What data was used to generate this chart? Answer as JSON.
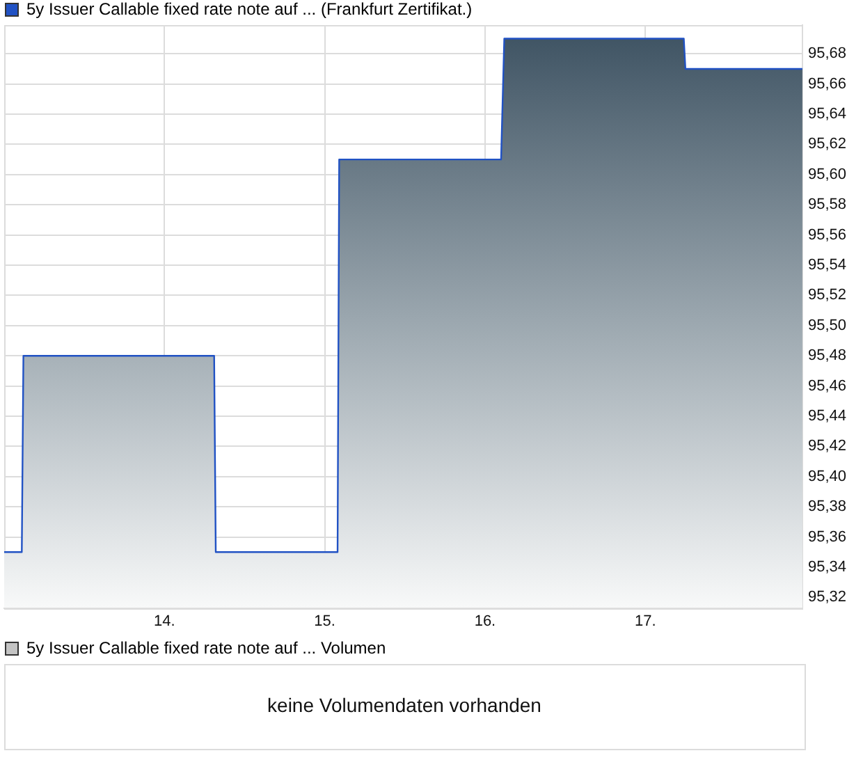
{
  "chart_data": [
    {
      "type": "area",
      "series": [
        {
          "name": "5y Issuer Callable fixed rate note auf ... (Frankfurt Zertifikat.)",
          "color": "#2152c4",
          "values": [
            95.35,
            95.35,
            95.48,
            95.48,
            95.35,
            95.35,
            95.61,
            95.61,
            95.69,
            95.69,
            95.67,
            95.67
          ]
        }
      ],
      "x": [
        13.0,
        13.11,
        13.12,
        14.31,
        14.32,
        15.08,
        15.09,
        16.1,
        16.12,
        17.24,
        17.25,
        17.98
      ],
      "xlim": [
        13.0,
        17.98
      ],
      "ylim": [
        95.313,
        95.699
      ],
      "xticks": [
        {
          "value": 14,
          "label": "14."
        },
        {
          "value": 15,
          "label": "15."
        },
        {
          "value": 16,
          "label": "16."
        },
        {
          "value": 17,
          "label": "17."
        }
      ],
      "yticks": [
        {
          "value": 95.32,
          "label": "95,32"
        },
        {
          "value": 95.34,
          "label": "95,34"
        },
        {
          "value": 95.36,
          "label": "95,36"
        },
        {
          "value": 95.38,
          "label": "95,38"
        },
        {
          "value": 95.4,
          "label": "95,40"
        },
        {
          "value": 95.42,
          "label": "95,42"
        },
        {
          "value": 95.44,
          "label": "95,44"
        },
        {
          "value": 95.46,
          "label": "95,46"
        },
        {
          "value": 95.48,
          "label": "95,48"
        },
        {
          "value": 95.5,
          "label": "95,50"
        },
        {
          "value": 95.52,
          "label": "95,52"
        },
        {
          "value": 95.54,
          "label": "95,54"
        },
        {
          "value": 95.56,
          "label": "95,56"
        },
        {
          "value": 95.58,
          "label": "95,58"
        },
        {
          "value": 95.6,
          "label": "95,60"
        },
        {
          "value": 95.62,
          "label": "95,62"
        },
        {
          "value": 95.64,
          "label": "95,64"
        },
        {
          "value": 95.66,
          "label": "95,66"
        },
        {
          "value": 95.68,
          "label": "95,68"
        }
      ],
      "grid": true,
      "legend": "top left"
    },
    {
      "type": "other",
      "series": [
        {
          "name": "5y Issuer Callable fixed rate note auf ... Volumen",
          "color": "#c4c4c4"
        }
      ],
      "legend": "top left",
      "annotations": [
        "keine Volumendaten vorhanden"
      ]
    }
  ]
}
